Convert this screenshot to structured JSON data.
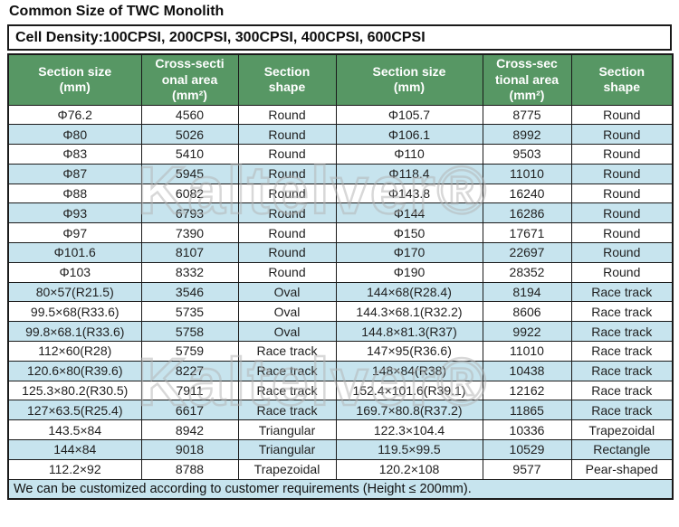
{
  "title": "Common Size of TWC Monolith",
  "cell_density_note": "Cell Density:100CPSI, 200CPSI, 300CPSI, 400CPSI, 600CPSI",
  "footer_note": "We can be customized according to customer requirements (Height ≤ 200mm).",
  "watermark_text": "Kaltelver®",
  "colors": {
    "header_green": "#579764",
    "row_alt_blue": "#c7e4ee",
    "border_black": "#1a1a1a"
  },
  "table": {
    "headers": [
      "Section size\n(mm)",
      "Cross-secti\nonal area\n(mm²)",
      "Section\nshape",
      "Section size\n(mm)",
      "Cross-sec\ntional area\n(mm²)",
      "Section\nshape"
    ],
    "rows": [
      [
        "Φ76.2",
        "4560",
        "Round",
        "Φ105.7",
        "8775",
        "Round"
      ],
      [
        "Φ80",
        "5026",
        "Round",
        "Φ106.1",
        "8992",
        "Round"
      ],
      [
        "Φ83",
        "5410",
        "Round",
        "Φ110",
        "9503",
        "Round"
      ],
      [
        "Φ87",
        "5945",
        "Round",
        "Φ118.4",
        "11010",
        "Round"
      ],
      [
        "Φ88",
        "6082",
        "Round",
        "Φ143.8",
        "16240",
        "Round"
      ],
      [
        "Φ93",
        "6793",
        "Round",
        "Φ144",
        "16286",
        "Round"
      ],
      [
        "Φ97",
        "7390",
        "Round",
        "Φ150",
        "17671",
        "Round"
      ],
      [
        "Φ101.6",
        "8107",
        "Round",
        "Φ170",
        "22697",
        "Round"
      ],
      [
        "Φ103",
        "8332",
        "Round",
        "Φ190",
        "28352",
        "Round"
      ],
      [
        "80×57(R21.5)",
        "3546",
        "Oval",
        "144×68(R28.4)",
        "8194",
        "Race track"
      ],
      [
        "99.5×68(R33.6)",
        "5735",
        "Oval",
        "144.3×68.1(R32.2)",
        "8606",
        "Race track"
      ],
      [
        "99.8×68.1(R33.6)",
        "5758",
        "Oval",
        "144.8×81.3(R37)",
        "9922",
        "Race track"
      ],
      [
        "112×60(R28)",
        "5759",
        "Race track",
        "147×95(R36.6)",
        "11010",
        "Race track"
      ],
      [
        "120.6×80(R39.6)",
        "8227",
        "Race track",
        "148×84(R38)",
        "10438",
        "Race track"
      ],
      [
        "125.3×80.2(R30.5)",
        "7911",
        "Race track",
        "152.4×101.6(R39.1)",
        "12162",
        "Race track"
      ],
      [
        "127×63.5(R25.4)",
        "6617",
        "Race track",
        "169.7×80.8(R37.2)",
        "11865",
        "Race track"
      ],
      [
        "143.5×84",
        "8942",
        "Triangular",
        "122.3×104.4",
        "10336",
        "Trapezoidal"
      ],
      [
        "144×84",
        "9018",
        "Triangular",
        "119.5×99.5",
        "10529",
        "Rectangle"
      ],
      [
        "112.2×92",
        "8788",
        "Trapezoidal",
        "120.2×108",
        "9577",
        "Pear-shaped"
      ]
    ]
  }
}
